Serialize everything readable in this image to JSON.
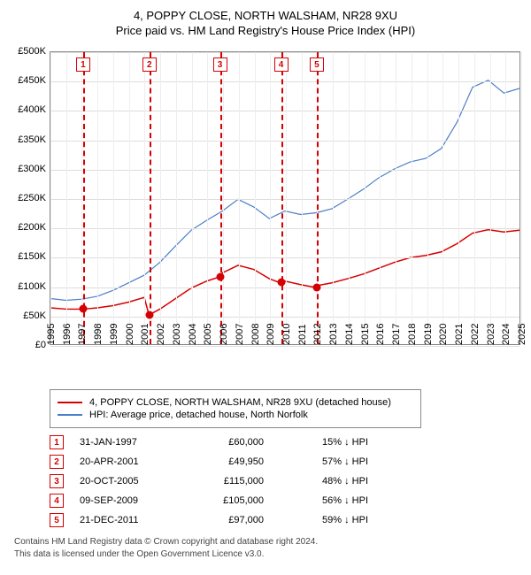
{
  "title1": "4, POPPY CLOSE, NORTH WALSHAM, NR28 9XU",
  "title2": "Price paid vs. HM Land Registry's House Price Index (HPI)",
  "chart": {
    "type": "line",
    "background_color": "#ffffff",
    "grid_color": "#dddddd",
    "xgrid_color": "#eeeeee",
    "axis_color": "#888888",
    "label_fontsize": 11,
    "xlim": [
      1995,
      2025
    ],
    "ylim": [
      0,
      500000
    ],
    "ytick_step": 50000,
    "yticks": [
      {
        "v": 0,
        "label": "£0"
      },
      {
        "v": 50000,
        "label": "£50K"
      },
      {
        "v": 100000,
        "label": "£100K"
      },
      {
        "v": 150000,
        "label": "£150K"
      },
      {
        "v": 200000,
        "label": "£200K"
      },
      {
        "v": 250000,
        "label": "£250K"
      },
      {
        "v": 300000,
        "label": "£300K"
      },
      {
        "v": 350000,
        "label": "£350K"
      },
      {
        "v": 400000,
        "label": "£400K"
      },
      {
        "v": 450000,
        "label": "£450K"
      },
      {
        "v": 500000,
        "label": "£500K"
      }
    ],
    "xticks": [
      1995,
      1996,
      1997,
      1998,
      1999,
      2000,
      2001,
      2002,
      2003,
      2004,
      2005,
      2006,
      2007,
      2008,
      2009,
      2010,
      2011,
      2012,
      2013,
      2014,
      2015,
      2016,
      2017,
      2018,
      2019,
      2020,
      2021,
      2022,
      2023,
      2024,
      2025
    ],
    "series": [
      {
        "name": "property",
        "label": "4, POPPY CLOSE, NORTH WALSHAM, NR28 9XU (detached house)",
        "color": "#d60000",
        "line_width": 1.5,
        "points": [
          [
            1995,
            62000
          ],
          [
            1996,
            60000
          ],
          [
            1997.08,
            60000
          ],
          [
            1998,
            62000
          ],
          [
            1999,
            66000
          ],
          [
            2000,
            72000
          ],
          [
            2001.0,
            80000
          ],
          [
            2001.3,
            49950
          ],
          [
            2002,
            60000
          ],
          [
            2003,
            78000
          ],
          [
            2004,
            96000
          ],
          [
            2005,
            108000
          ],
          [
            2005.8,
            115000
          ],
          [
            2006,
            122000
          ],
          [
            2007,
            135000
          ],
          [
            2008,
            128000
          ],
          [
            2009,
            112000
          ],
          [
            2009.69,
            105000
          ],
          [
            2010,
            108000
          ],
          [
            2011,
            102000
          ],
          [
            2011.97,
            97000
          ],
          [
            2012,
            100000
          ],
          [
            2013,
            105000
          ],
          [
            2014,
            112000
          ],
          [
            2015,
            120000
          ],
          [
            2016,
            130000
          ],
          [
            2017,
            140000
          ],
          [
            2018,
            148000
          ],
          [
            2019,
            152000
          ],
          [
            2020,
            158000
          ],
          [
            2021,
            172000
          ],
          [
            2022,
            190000
          ],
          [
            2023,
            196000
          ],
          [
            2024,
            192000
          ],
          [
            2025,
            195000
          ]
        ]
      },
      {
        "name": "hpi",
        "label": "HPI: Average price, detached house, North Norfolk",
        "color": "#4a7ec8",
        "line_width": 1.2,
        "points": [
          [
            1995,
            78000
          ],
          [
            1996,
            75000
          ],
          [
            1997,
            77000
          ],
          [
            1998,
            82000
          ],
          [
            1999,
            92000
          ],
          [
            2000,
            105000
          ],
          [
            2001,
            118000
          ],
          [
            2002,
            140000
          ],
          [
            2003,
            168000
          ],
          [
            2004,
            195000
          ],
          [
            2005,
            212000
          ],
          [
            2006,
            228000
          ],
          [
            2007,
            248000
          ],
          [
            2008,
            235000
          ],
          [
            2009,
            215000
          ],
          [
            2010,
            228000
          ],
          [
            2011,
            222000
          ],
          [
            2012,
            225000
          ],
          [
            2013,
            232000
          ],
          [
            2014,
            248000
          ],
          [
            2015,
            265000
          ],
          [
            2016,
            285000
          ],
          [
            2017,
            300000
          ],
          [
            2018,
            312000
          ],
          [
            2019,
            318000
          ],
          [
            2020,
            335000
          ],
          [
            2021,
            380000
          ],
          [
            2022,
            440000
          ],
          [
            2023,
            452000
          ],
          [
            2024,
            430000
          ],
          [
            2025,
            438000
          ]
        ]
      }
    ],
    "markers": [
      {
        "n": 1,
        "x": 1997.08,
        "y": 60000,
        "color": "#d60000"
      },
      {
        "n": 2,
        "x": 2001.3,
        "y": 49950,
        "color": "#d60000"
      },
      {
        "n": 3,
        "x": 2005.8,
        "y": 115000,
        "color": "#d60000"
      },
      {
        "n": 4,
        "x": 2009.69,
        "y": 105000,
        "color": "#d60000"
      },
      {
        "n": 5,
        "x": 2011.97,
        "y": 97000,
        "color": "#d60000"
      }
    ]
  },
  "legend": {
    "items": [
      {
        "color": "#d60000",
        "label": "4, POPPY CLOSE, NORTH WALSHAM, NR28 9XU (detached house)"
      },
      {
        "color": "#4a7ec8",
        "label": "HPI: Average price, detached house, North Norfolk"
      }
    ]
  },
  "transactions": [
    {
      "n": "1",
      "date": "31-JAN-1997",
      "price": "£60,000",
      "pct": "15% ↓ HPI",
      "color": "#d60000"
    },
    {
      "n": "2",
      "date": "20-APR-2001",
      "price": "£49,950",
      "pct": "57% ↓ HPI",
      "color": "#d60000"
    },
    {
      "n": "3",
      "date": "20-OCT-2005",
      "price": "£115,000",
      "pct": "48% ↓ HPI",
      "color": "#d60000"
    },
    {
      "n": "4",
      "date": "09-SEP-2009",
      "price": "£105,000",
      "pct": "56% ↓ HPI",
      "color": "#d60000"
    },
    {
      "n": "5",
      "date": "21-DEC-2011",
      "price": "£97,000",
      "pct": "59% ↓ HPI",
      "color": "#d60000"
    }
  ],
  "footer1": "Contains HM Land Registry data © Crown copyright and database right 2024.",
  "footer2": "This data is licensed under the Open Government Licence v3.0."
}
